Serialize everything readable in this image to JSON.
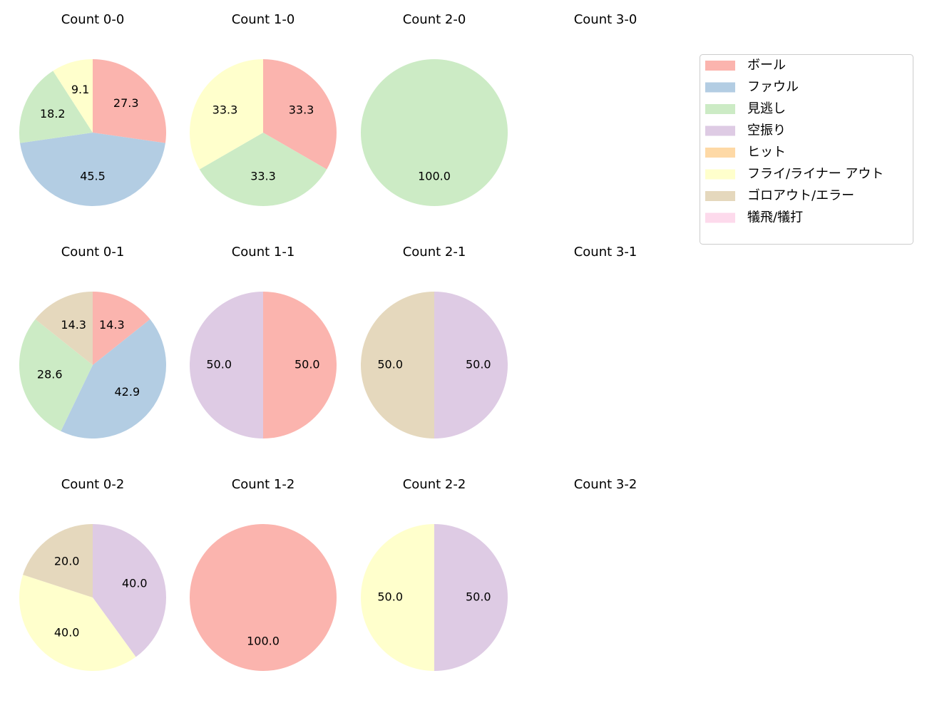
{
  "chart_data": [
    {
      "type": "pie",
      "title": "Count 0-0",
      "values": [
        27.3,
        45.5,
        18.2,
        9.1
      ],
      "value_labels": [
        "27.3",
        "45.5",
        "18.2",
        "9.1"
      ],
      "colors": [
        "#fbb4ae",
        "#b3cde3",
        "#ccebc5",
        "#ffffcc"
      ]
    },
    {
      "type": "pie",
      "title": "Count 1-0",
      "values": [
        33.3,
        33.3,
        33.3
      ],
      "value_labels": [
        "33.3",
        "33.3",
        "33.3"
      ],
      "colors": [
        "#fbb4ae",
        "#ccebc5",
        "#ffffcc"
      ]
    },
    {
      "type": "pie",
      "title": "Count 2-0",
      "values": [
        100.0
      ],
      "value_labels": [
        "100.0"
      ],
      "colors": [
        "#ccebc5"
      ]
    },
    {
      "type": "pie",
      "title": "Count 3-0",
      "values": [],
      "value_labels": [],
      "colors": []
    },
    {
      "type": "pie",
      "title": "Count 0-1",
      "values": [
        14.3,
        42.9,
        28.6,
        14.3
      ],
      "value_labels": [
        "14.3",
        "42.9",
        "28.6",
        "14.3"
      ],
      "colors": [
        "#fbb4ae",
        "#b3cde3",
        "#ccebc5",
        "#e5d8bd"
      ]
    },
    {
      "type": "pie",
      "title": "Count 1-1",
      "values": [
        50.0,
        50.0
      ],
      "value_labels": [
        "50.0",
        "50.0"
      ],
      "colors": [
        "#fbb4ae",
        "#decbe4"
      ]
    },
    {
      "type": "pie",
      "title": "Count 2-1",
      "values": [
        50.0,
        50.0
      ],
      "value_labels": [
        "50.0",
        "50.0"
      ],
      "colors": [
        "#decbe4",
        "#e5d8bd"
      ]
    },
    {
      "type": "pie",
      "title": "Count 3-1",
      "values": [],
      "value_labels": [],
      "colors": []
    },
    {
      "type": "pie",
      "title": "Count 0-2",
      "values": [
        40.0,
        40.0,
        20.0
      ],
      "value_labels": [
        "40.0",
        "40.0",
        "20.0"
      ],
      "colors": [
        "#decbe4",
        "#ffffcc",
        "#e5d8bd"
      ]
    },
    {
      "type": "pie",
      "title": "Count 1-2",
      "values": [
        100.0
      ],
      "value_labels": [
        "100.0"
      ],
      "colors": [
        "#fbb4ae"
      ]
    },
    {
      "type": "pie",
      "title": "Count 2-2",
      "values": [
        50.0,
        50.0
      ],
      "value_labels": [
        "50.0",
        "50.0"
      ],
      "colors": [
        "#decbe4",
        "#ffffcc"
      ]
    },
    {
      "type": "pie",
      "title": "Count 3-2",
      "values": [],
      "value_labels": [],
      "colors": []
    }
  ],
  "legend": {
    "position": "upper right",
    "entries": [
      {
        "name": "ボール",
        "color": "#fbb4ae"
      },
      {
        "name": "ファウル",
        "color": "#b3cde3"
      },
      {
        "name": "見逃し",
        "color": "#ccebc5"
      },
      {
        "name": "空振り",
        "color": "#decbe4"
      },
      {
        "name": "ヒット",
        "color": "#fed9a6"
      },
      {
        "name": "フライ/ライナー アウト",
        "color": "#ffffcc"
      },
      {
        "name": "ゴロアウト/エラー",
        "color": "#e5d8bd"
      },
      {
        "name": "犠飛/犠打",
        "color": "#fddaec"
      }
    ]
  }
}
